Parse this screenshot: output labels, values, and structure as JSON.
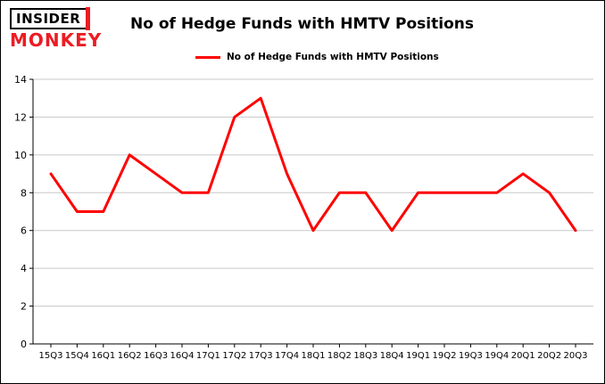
{
  "logo": {
    "line1": "INSIDER",
    "line2": "MONKEY"
  },
  "chart_data": {
    "type": "line",
    "title": "No of Hedge Funds with HMTV Positions",
    "categories": [
      "15Q3",
      "15Q4",
      "16Q1",
      "16Q2",
      "16Q3",
      "16Q4",
      "17Q1",
      "17Q2",
      "17Q3",
      "17Q4",
      "18Q1",
      "18Q2",
      "18Q3",
      "18Q4",
      "19Q1",
      "19Q2",
      "19Q3",
      "19Q4",
      "20Q1",
      "20Q2",
      "20Q3"
    ],
    "series": [
      {
        "name": "No of Hedge Funds with HMTV Positions",
        "values": [
          9,
          7,
          7,
          10,
          9,
          8,
          8,
          12,
          13,
          9,
          6,
          8,
          8,
          6,
          8,
          8,
          8,
          8,
          9,
          8,
          6
        ],
        "color": "#ff0000"
      }
    ],
    "ylim": [
      0,
      14
    ],
    "yticks": [
      0,
      2,
      4,
      6,
      8,
      10,
      12,
      14
    ],
    "grid": true,
    "legend_position": "top",
    "xlabel": "",
    "ylabel": ""
  },
  "colors": {
    "line_red": "#ff0000",
    "logo_red": "#ec1c24",
    "grid": "#c8c8c8",
    "axis": "#000000",
    "text": "#000000",
    "background": "#ffffff"
  }
}
